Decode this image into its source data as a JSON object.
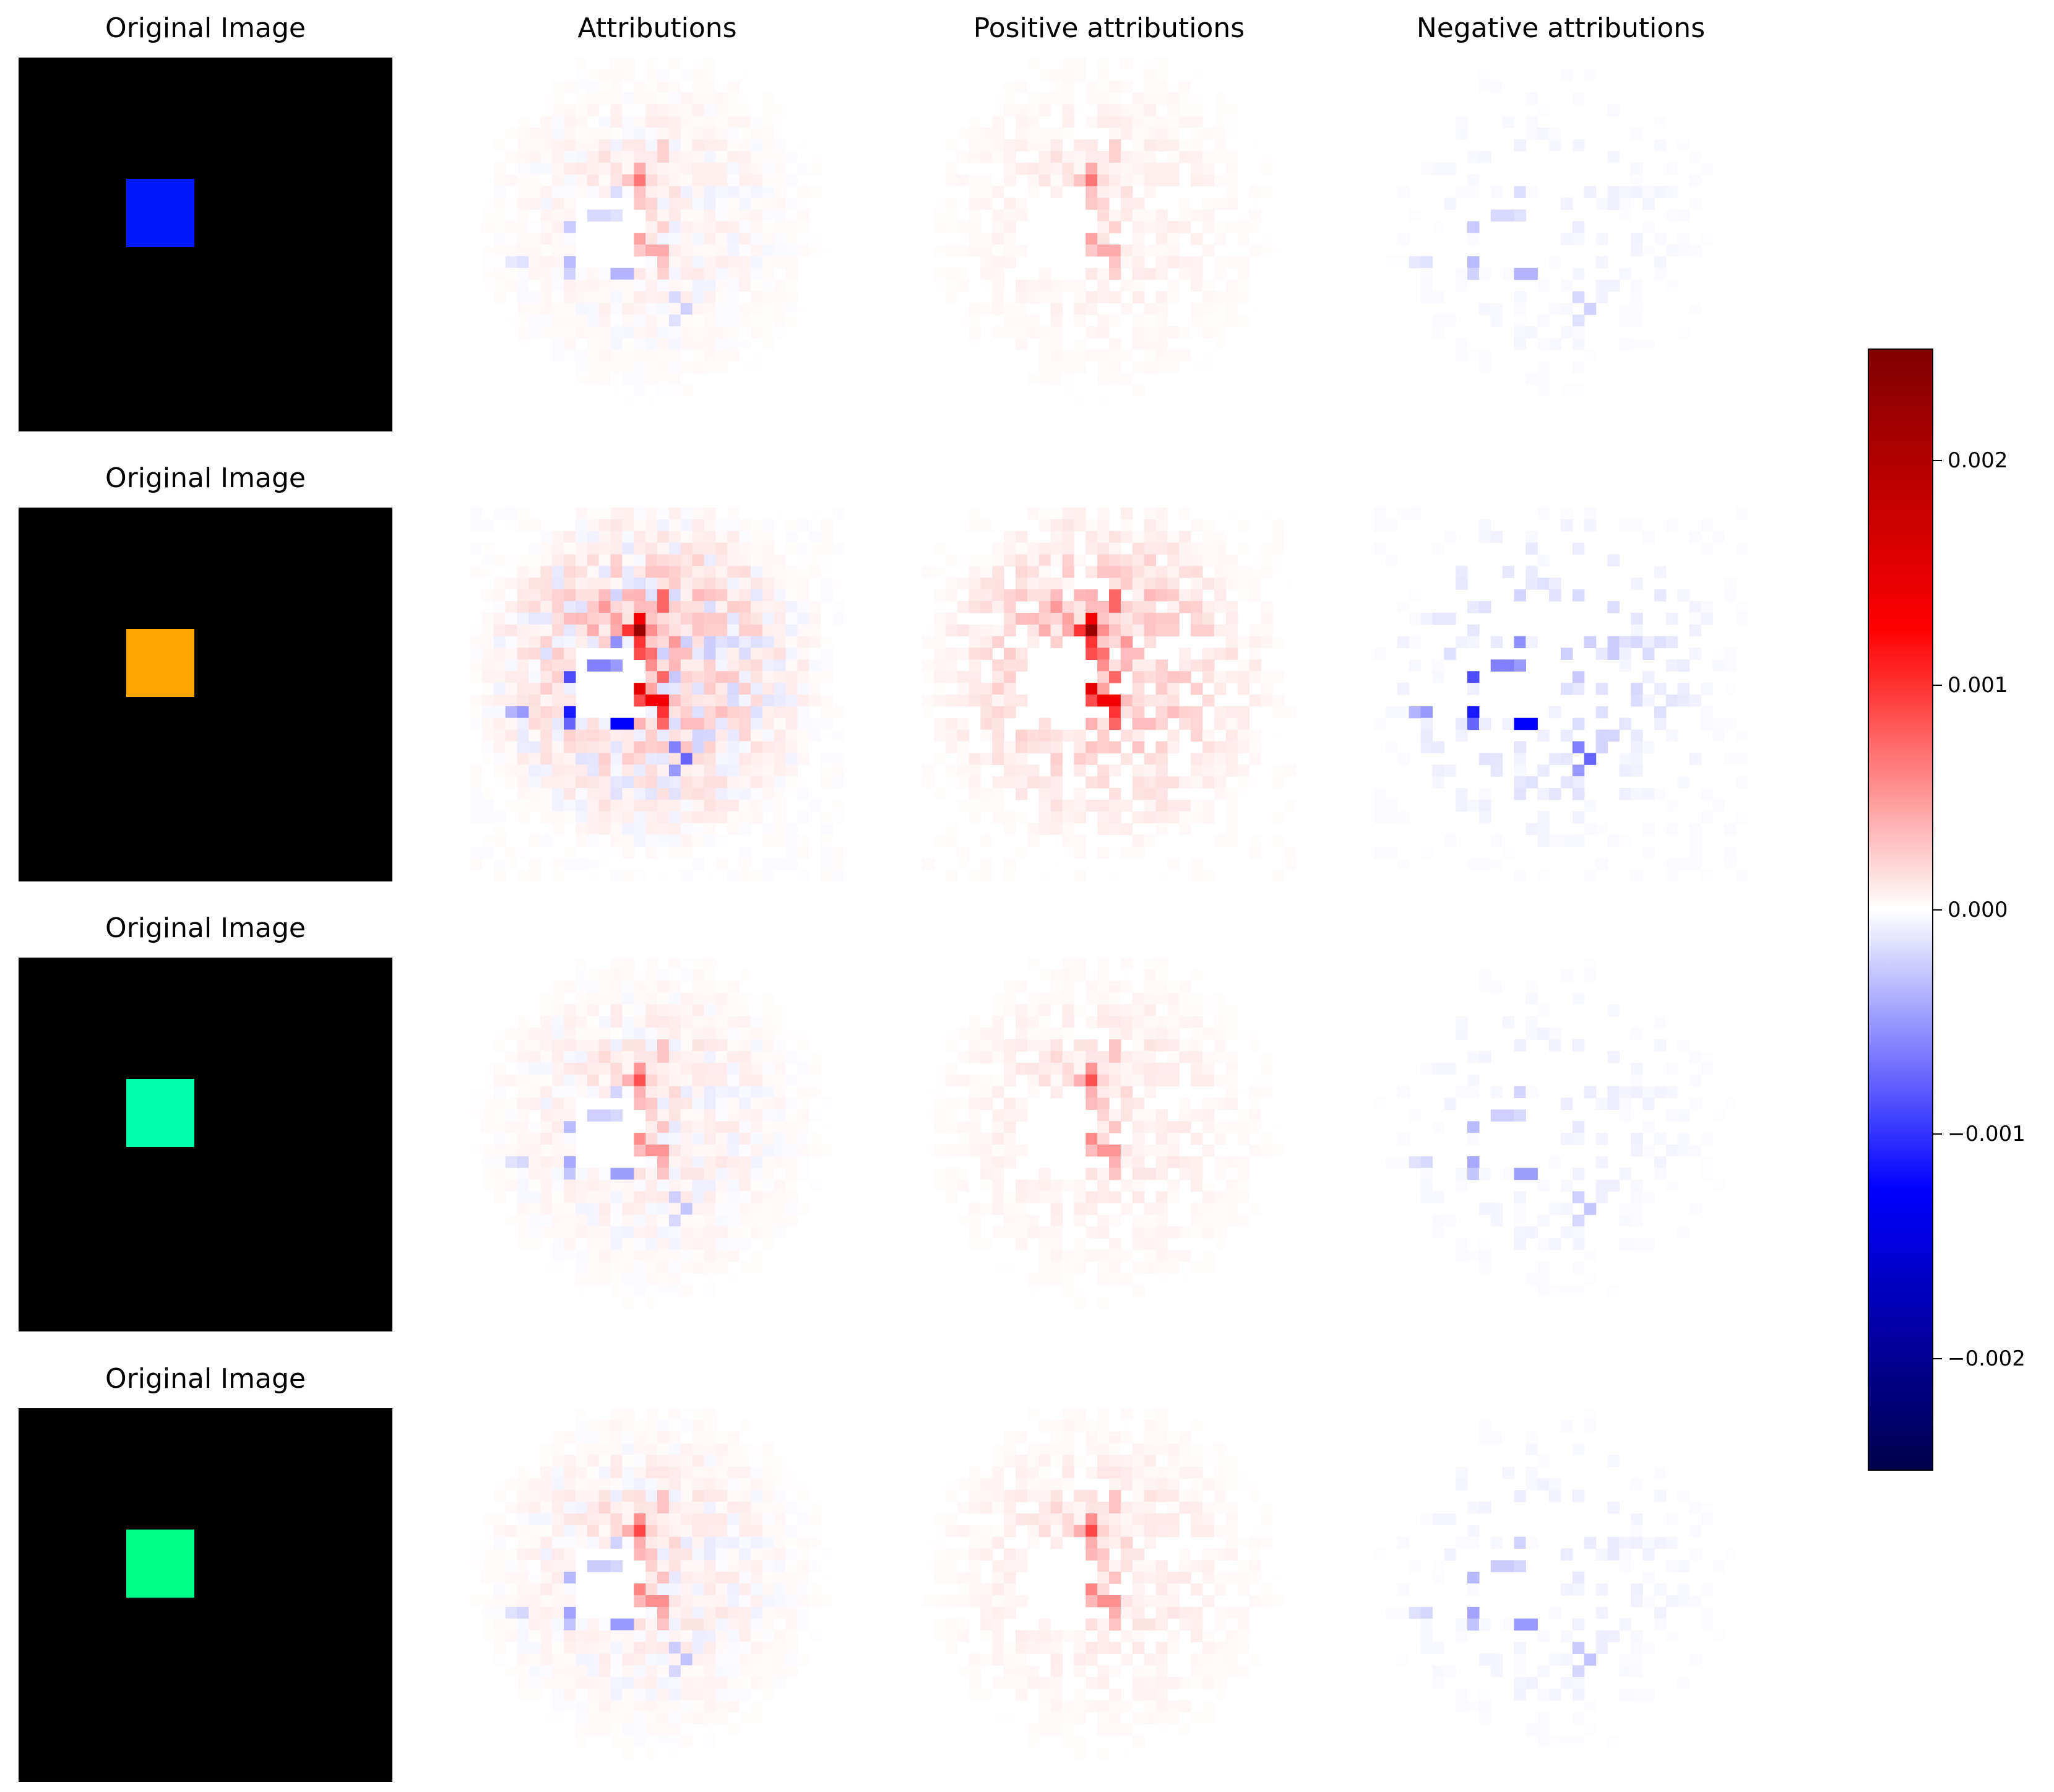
{
  "chart_data": {
    "type": "heatmap",
    "column_titles": [
      "Original Image",
      "Attributions",
      "Positive attributions",
      "Negative attributions"
    ],
    "row_title_original": "Original Image",
    "square_colors": [
      "#0018ff",
      "#ffa500",
      "#00ffaa",
      "#00ff8a"
    ],
    "row_intensity": [
      0.3,
      1.0,
      0.38,
      0.4
    ],
    "colormap": "seismic",
    "colorbar": {
      "vmin": -0.0025,
      "vmax": 0.0025,
      "ticks": [
        0.002,
        0.001,
        0.0,
        -0.001,
        -0.002
      ],
      "tick_labels": [
        "0.002",
        "0.001",
        "0.000",
        "−0.001",
        "−0.002"
      ]
    },
    "grid_size": 32
  }
}
